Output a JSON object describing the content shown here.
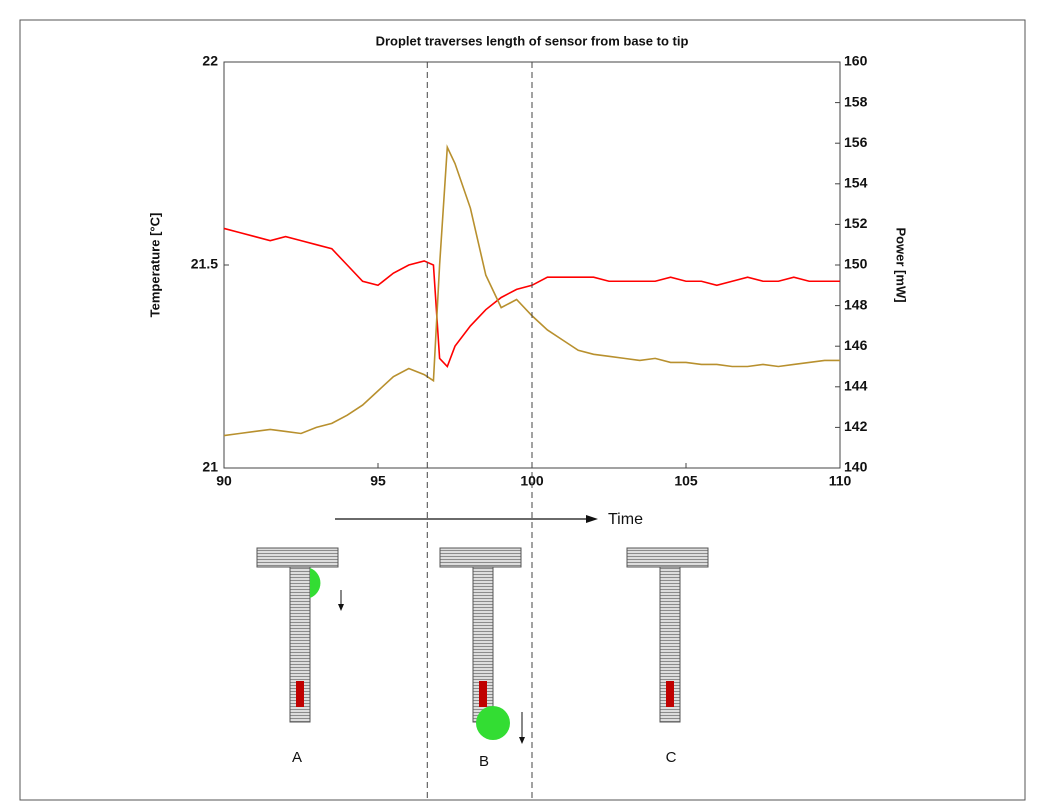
{
  "chart_data": {
    "type": "line",
    "title": "Droplet traverses length of sensor from base to tip",
    "ylabel": "Temperature [°C]",
    "y2label": "Power [mW]",
    "x": [
      90,
      90.5,
      91,
      91.5,
      92,
      92.5,
      93,
      93.5,
      94,
      94.5,
      95,
      95.5,
      96,
      96.5,
      96.8,
      97,
      97.25,
      97.5,
      98,
      98.5,
      99,
      99.5,
      100,
      100.5,
      101,
      101.5,
      102,
      102.5,
      103,
      103.5,
      104,
      104.5,
      105,
      105.5,
      106,
      106.5,
      107,
      107.5,
      108,
      108.5,
      109,
      109.5,
      110
    ],
    "series": [
      {
        "name": "Temperature",
        "color": "#ff0000",
        "axis": "y",
        "values": [
          21.59,
          21.58,
          21.57,
          21.56,
          21.57,
          21.56,
          21.55,
          21.54,
          21.5,
          21.46,
          21.45,
          21.48,
          21.5,
          21.51,
          21.5,
          21.27,
          21.25,
          21.3,
          21.35,
          21.39,
          21.42,
          21.44,
          21.45,
          21.47,
          21.47,
          21.47,
          21.47,
          21.46,
          21.46,
          21.46,
          21.46,
          21.47,
          21.46,
          21.46,
          21.45,
          21.46,
          21.47,
          21.46,
          21.46,
          21.47,
          21.46,
          21.46,
          21.46
        ]
      },
      {
        "name": "Power",
        "color": "#b8902e",
        "axis": "y2",
        "values": [
          141.6,
          141.7,
          141.8,
          141.9,
          141.8,
          141.7,
          142.0,
          142.2,
          142.6,
          143.1,
          143.8,
          144.5,
          144.9,
          144.6,
          144.3,
          150.0,
          155.8,
          155.0,
          152.8,
          149.5,
          147.9,
          148.3,
          147.5,
          146.8,
          146.3,
          145.8,
          145.6,
          145.5,
          145.4,
          145.3,
          145.4,
          145.2,
          145.2,
          145.1,
          145.1,
          145.0,
          145.0,
          145.1,
          145.0,
          145.1,
          145.2,
          145.3,
          145.3
        ]
      }
    ],
    "xlim": [
      90,
      110
    ],
    "xticks": [
      90,
      95,
      100,
      105,
      110
    ],
    "ylim": [
      21,
      22
    ],
    "yticks": [
      21,
      21.5,
      22
    ],
    "y2lim": [
      140,
      160
    ],
    "y2ticks": [
      140,
      142,
      144,
      146,
      148,
      150,
      152,
      154,
      156,
      158,
      160
    ],
    "vlines": [
      96.6,
      100
    ]
  },
  "diagram": {
    "arrow_label": "Time",
    "labels": [
      "A",
      "B",
      "C"
    ]
  }
}
